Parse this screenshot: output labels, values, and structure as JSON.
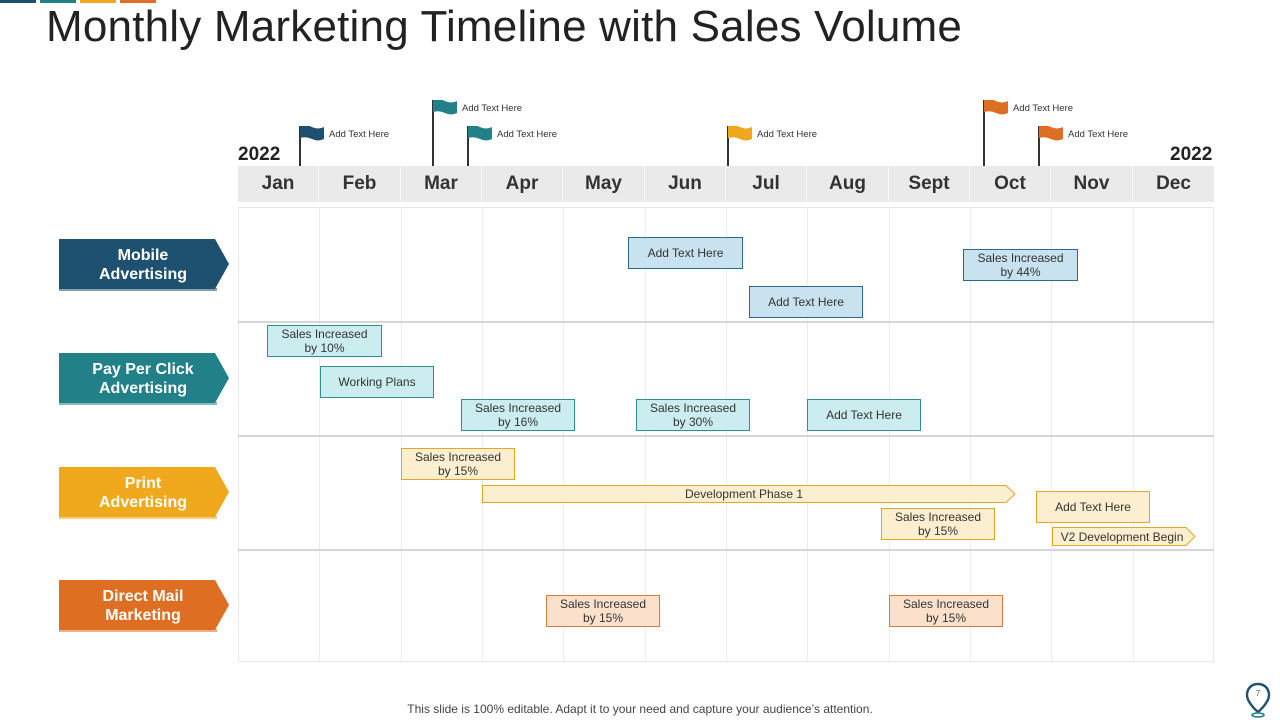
{
  "title": "Monthly Marketing Timeline with Sales Volume",
  "years": {
    "left": "2022",
    "right": "2022"
  },
  "months": [
    "Jan",
    "Feb",
    "Mar",
    "Apr",
    "May",
    "Jun",
    "Jul",
    "Aug",
    "Sept",
    "Oct",
    "Nov",
    "Dec"
  ],
  "colors": {
    "mobile": "#1e5070",
    "ppc": "#218088",
    "print": "#f0a81d",
    "direct": "#dd6e22",
    "accent_bars": [
      "#1e5070",
      "#218088",
      "#f0a81d",
      "#dd6e22"
    ]
  },
  "flags": [
    {
      "label": "Add Text Here",
      "color_key": "mobile"
    },
    {
      "label": "Add Text Here",
      "color_key": "ppc"
    },
    {
      "label": "Add Text Here",
      "color_key": "ppc"
    },
    {
      "label": "Add Text Here",
      "color_key": "print"
    },
    {
      "label": "Add Text Here",
      "color_key": "direct"
    },
    {
      "label": "Add Text Here",
      "color_key": "direct"
    }
  ],
  "categories": [
    {
      "label": "Mobile\nAdvertising",
      "color_key": "mobile"
    },
    {
      "label": "Pay Per Click\nAdvertising",
      "color_key": "ppc"
    },
    {
      "label": "Print\nAdvertising",
      "color_key": "print"
    },
    {
      "label": "Direct Mail\nMarketing",
      "color_key": "direct"
    }
  ],
  "boxes": {
    "mobile_1": "Add Text Here",
    "mobile_2": "Add Text Here",
    "mobile_3": "Sales Increased\nby 44%",
    "ppc_1": "Sales Increased\nby 10%",
    "ppc_2": "Working Plans",
    "ppc_3": "Sales Increased\nby 16%",
    "ppc_4": "Sales Increased\nby 30%",
    "ppc_5": "Add Text Here",
    "print_1": "Sales Increased\nby 15%",
    "print_2": "Sales Increased\nby 15%",
    "print_3": "Add Text Here",
    "direct_1": "Sales Increased\nby 15%",
    "direct_2": "Sales Increased\nby 15%"
  },
  "arrows": {
    "dev_phase": "Development Phase 1",
    "v2": "V2 Development Begin"
  },
  "footer": "This slide is 100% editable. Adapt it to your need and capture your audience’s attention.",
  "page_number": "7",
  "icons": {
    "flag": "flag-icon",
    "pin": "location-pin-icon",
    "chevron": "chevron-banner"
  }
}
